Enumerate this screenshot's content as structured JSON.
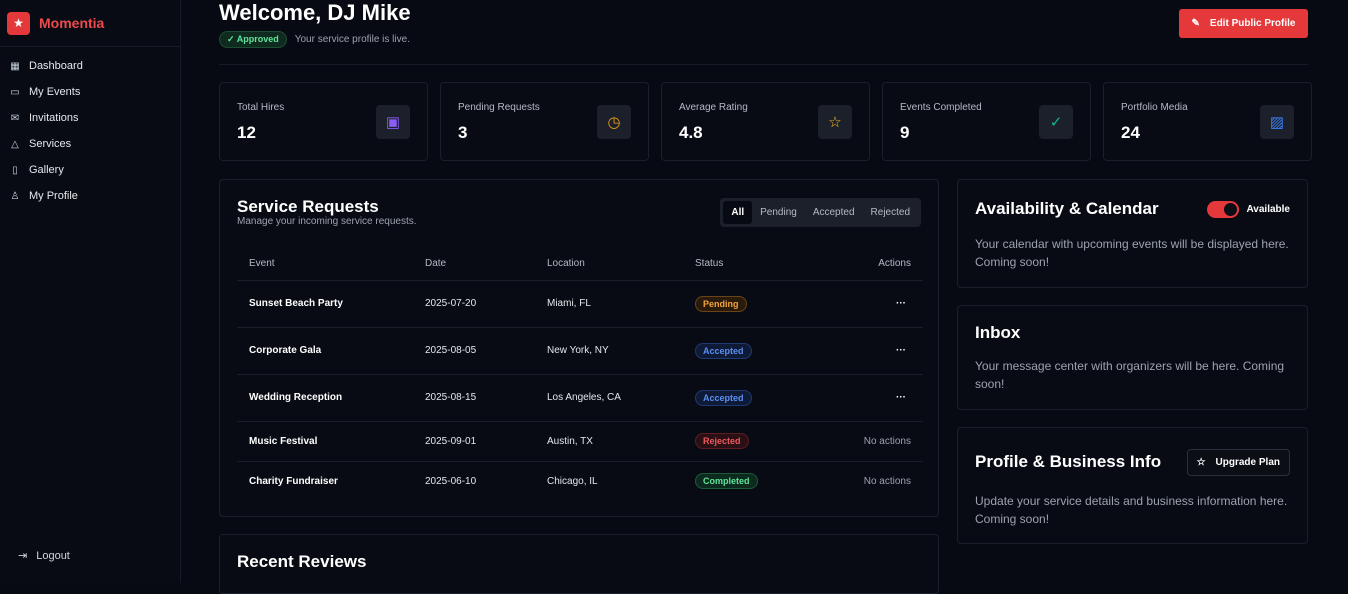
{
  "sidebar": {
    "brand": "Momentia",
    "items": [
      {
        "label": "Dashboard",
        "icon": "grid-icon"
      },
      {
        "label": "My Events",
        "icon": "calendar-icon"
      },
      {
        "label": "Invitations",
        "icon": "mail-icon"
      },
      {
        "label": "Services",
        "icon": "bell-icon"
      },
      {
        "label": "Gallery",
        "icon": "gallery-icon"
      },
      {
        "label": "My Profile",
        "icon": "user-icon"
      }
    ],
    "logout": "Logout"
  },
  "header": {
    "title": "Welcome, DJ Mike",
    "status": "Approved",
    "status_text": "Your service profile is live.",
    "edit_button": "Edit Public Profile"
  },
  "stats": [
    {
      "label": "Total Hires",
      "value": "12",
      "color": "#8b5cf6"
    },
    {
      "label": "Pending Requests",
      "value": "3",
      "color": "#f59e0b"
    },
    {
      "label": "Average Rating",
      "value": "4.8",
      "color": "#fbbf24"
    },
    {
      "label": "Events Completed",
      "value": "9",
      "color": "#10b981"
    },
    {
      "label": "Portfolio Media",
      "value": "24",
      "color": "#3b82f6"
    }
  ],
  "requests": {
    "title": "Service Requests",
    "subtitle": "Manage your incoming service requests.",
    "filters": [
      "All",
      "Pending",
      "Accepted",
      "Rejected"
    ],
    "columns": [
      "Event",
      "Date",
      "Location",
      "Status",
      "Actions"
    ],
    "rows": [
      {
        "event": "Sunset Beach Party",
        "date": "2025-07-20",
        "location": "Miami, FL",
        "status": "Pending",
        "action": "···"
      },
      {
        "event": "Corporate Gala",
        "date": "2025-08-05",
        "location": "New York, NY",
        "status": "Accepted",
        "action": "···"
      },
      {
        "event": "Wedding Reception",
        "date": "2025-08-15",
        "location": "Los Angeles, CA",
        "status": "Accepted",
        "action": "···"
      },
      {
        "event": "Music Festival",
        "date": "2025-09-01",
        "location": "Austin, TX",
        "status": "Rejected",
        "action": "No actions"
      },
      {
        "event": "Charity Fundraiser",
        "date": "2025-06-10",
        "location": "Chicago, IL",
        "status": "Completed",
        "action": "No actions"
      }
    ]
  },
  "availability": {
    "title": "Availability & Calendar",
    "toggle_label": "Available",
    "toggle_on": true,
    "text": "Your calendar with upcoming events will be displayed here. Coming soon!"
  },
  "inbox": {
    "title": "Inbox",
    "text": "Your message center with organizers will be here. Coming soon!"
  },
  "business": {
    "title": "Profile & Business Info",
    "button": "Upgrade Plan",
    "text": "Update your service details and business information here. Coming soon!"
  },
  "reviews": {
    "title": "Recent Reviews"
  }
}
